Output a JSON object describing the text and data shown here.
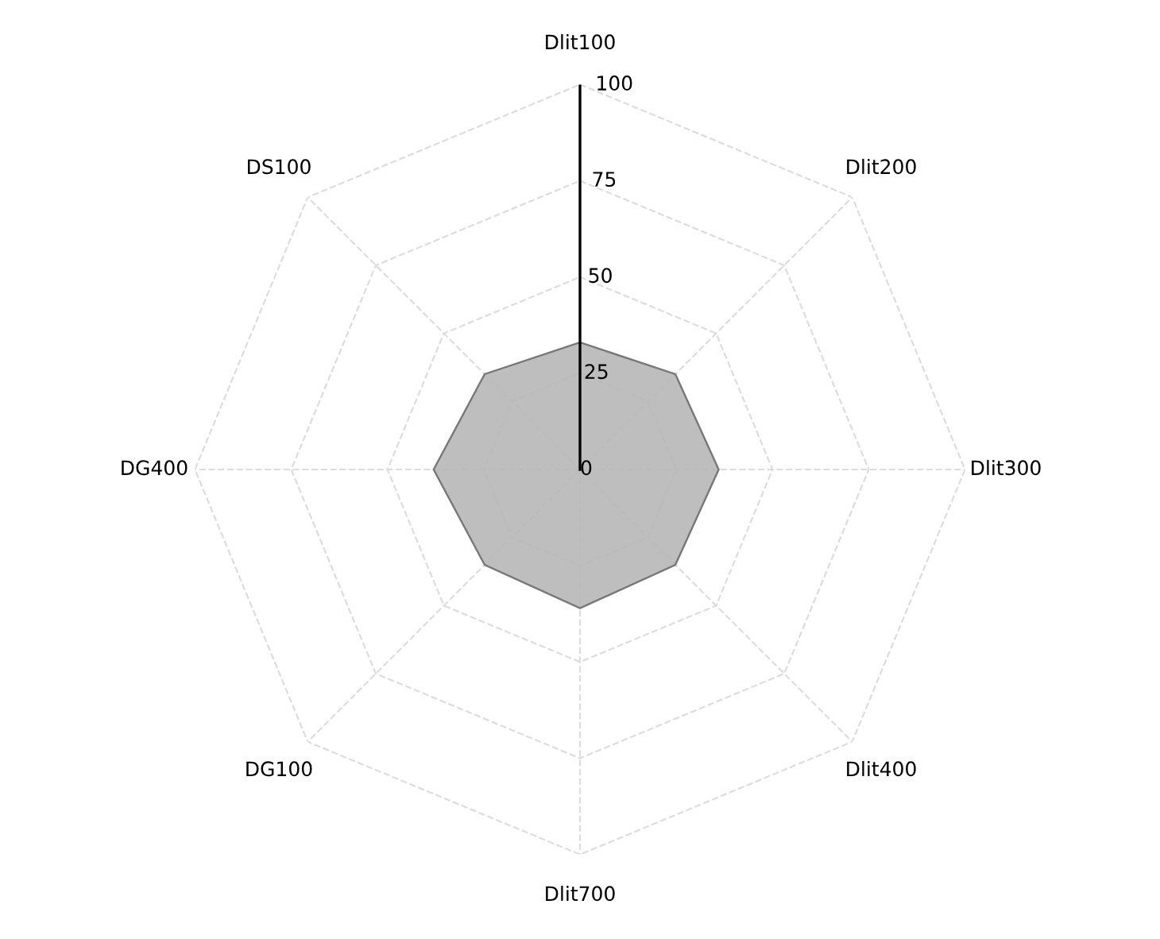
{
  "chart_data": {
    "type": "radar",
    "categories": [
      "Dlit100",
      "Dlit200",
      "Dlit300",
      "Dlit400",
      "Dlit700",
      "DG100",
      "DG400",
      "DS100"
    ],
    "series": [
      {
        "color": "#b8b8b8",
        "values": [
          33,
          35,
          36,
          35,
          36,
          35,
          38,
          35
        ]
      }
    ],
    "ylim": [
      0,
      100
    ],
    "yticks": [
      0,
      25,
      50,
      75,
      100
    ],
    "grid": true
  }
}
